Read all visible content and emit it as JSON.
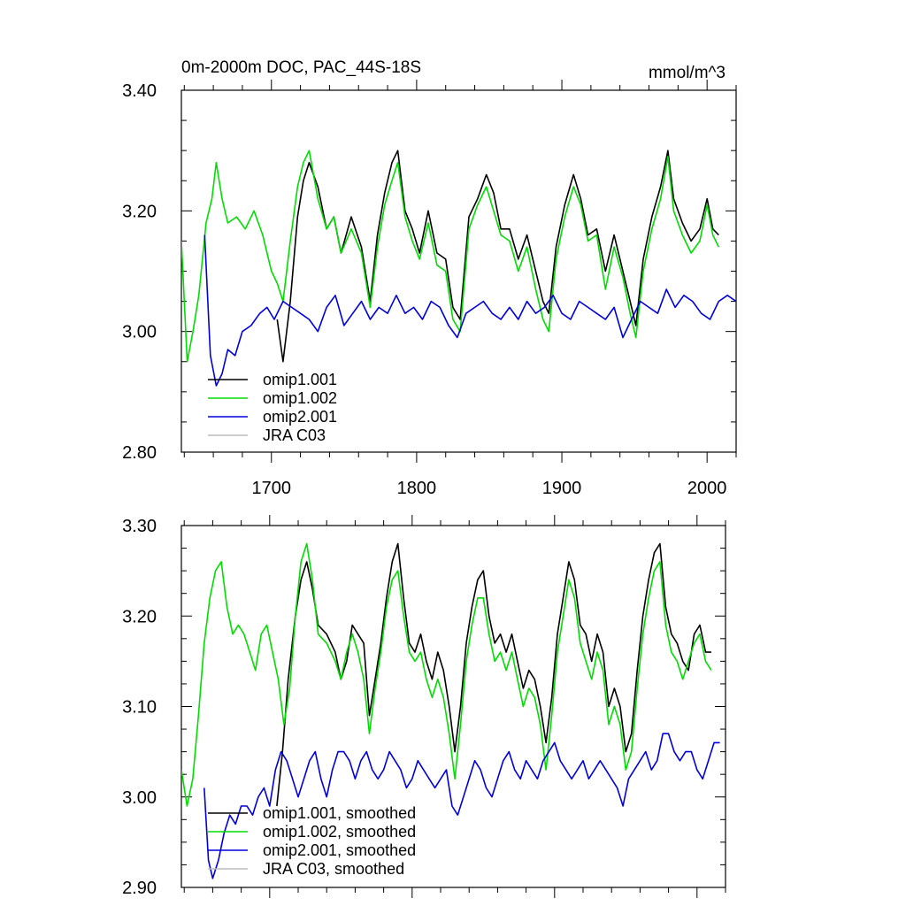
{
  "chart_data": [
    {
      "type": "line",
      "title": "0m-2000m DOC, PAC_44S-18S",
      "units": "mmol/m^3",
      "xlabel": "",
      "ylabel": "",
      "xlim": [
        1638,
        2020
      ],
      "ylim": [
        2.8,
        3.4
      ],
      "yticks": [
        2.8,
        3.0,
        3.2,
        3.4
      ],
      "ytick_labels": [
        "2.80",
        "3.00",
        "3.20",
        "3.40"
      ],
      "xticks": [
        1700,
        1800,
        1900,
        2000
      ],
      "xtick_labels": [
        "1700",
        "1800",
        "1900",
        "2000"
      ],
      "legend_position": "bottom-left",
      "series": [
        {
          "name": "omip1.001",
          "color": "#000000",
          "x": [
            1704,
            1708,
            1713,
            1718,
            1722,
            1726,
            1732,
            1738,
            1743,
            1748,
            1755,
            1762,
            1768,
            1773,
            1778,
            1783,
            1787,
            1792,
            1797,
            1802,
            1808,
            1814,
            1820,
            1825,
            1830,
            1836,
            1842,
            1848,
            1853,
            1858,
            1864,
            1870,
            1876,
            1882,
            1887,
            1891,
            1896,
            1902,
            1908,
            1913,
            1918,
            1924,
            1930,
            1936,
            1942,
            1947,
            1951,
            1956,
            1962,
            1968,
            1973,
            1977,
            1983,
            1989,
            1995,
            2000,
            2004,
            2008
          ],
          "y": [
            3.02,
            2.95,
            3.05,
            3.19,
            3.25,
            3.28,
            3.24,
            3.17,
            3.19,
            3.13,
            3.19,
            3.14,
            3.05,
            3.16,
            3.23,
            3.28,
            3.3,
            3.2,
            3.17,
            3.13,
            3.2,
            3.13,
            3.12,
            3.04,
            3.02,
            3.19,
            3.22,
            3.26,
            3.23,
            3.17,
            3.17,
            3.12,
            3.16,
            3.1,
            3.05,
            3.03,
            3.14,
            3.21,
            3.26,
            3.22,
            3.16,
            3.17,
            3.1,
            3.16,
            3.1,
            3.05,
            3.01,
            3.12,
            3.19,
            3.24,
            3.3,
            3.22,
            3.18,
            3.15,
            3.17,
            3.22,
            3.17,
            3.16
          ]
        },
        {
          "name": "omip1.002",
          "color": "#00dd00",
          "x": [
            1638,
            1642,
            1646,
            1650,
            1655,
            1659,
            1662,
            1666,
            1670,
            1676,
            1682,
            1688,
            1694,
            1700,
            1704,
            1708,
            1713,
            1718,
            1722,
            1726,
            1732,
            1738,
            1743,
            1748,
            1755,
            1762,
            1768,
            1773,
            1778,
            1783,
            1787,
            1792,
            1797,
            1802,
            1808,
            1814,
            1820,
            1825,
            1830,
            1836,
            1842,
            1848,
            1853,
            1858,
            1864,
            1870,
            1876,
            1882,
            1887,
            1891,
            1896,
            1902,
            1908,
            1913,
            1918,
            1924,
            1930,
            1936,
            1942,
            1947,
            1951,
            1956,
            1962,
            1968,
            1973,
            1977,
            1983,
            1989,
            1995,
            2000,
            2004,
            2008
          ],
          "y": [
            3.15,
            2.95,
            3.0,
            3.06,
            3.18,
            3.22,
            3.28,
            3.22,
            3.18,
            3.19,
            3.17,
            3.2,
            3.16,
            3.1,
            3.08,
            3.05,
            3.15,
            3.24,
            3.28,
            3.3,
            3.22,
            3.17,
            3.19,
            3.13,
            3.17,
            3.13,
            3.04,
            3.14,
            3.21,
            3.25,
            3.28,
            3.19,
            3.15,
            3.12,
            3.18,
            3.11,
            3.1,
            3.02,
            3.0,
            3.17,
            3.21,
            3.24,
            3.2,
            3.16,
            3.15,
            3.1,
            3.14,
            3.07,
            3.02,
            3.0,
            3.12,
            3.19,
            3.24,
            3.21,
            3.15,
            3.16,
            3.07,
            3.14,
            3.09,
            3.03,
            2.99,
            3.1,
            3.17,
            3.22,
            3.29,
            3.2,
            3.16,
            3.13,
            3.15,
            3.21,
            3.16,
            3.14
          ]
        },
        {
          "name": "omip2.001",
          "color": "#0000dd",
          "x": [
            1654,
            1658,
            1662,
            1666,
            1670,
            1675,
            1680,
            1686,
            1692,
            1697,
            1702,
            1708,
            1714,
            1720,
            1726,
            1732,
            1738,
            1744,
            1750,
            1756,
            1762,
            1768,
            1774,
            1780,
            1786,
            1792,
            1798,
            1804,
            1810,
            1816,
            1822,
            1828,
            1834,
            1840,
            1846,
            1852,
            1858,
            1864,
            1870,
            1876,
            1882,
            1888,
            1894,
            1900,
            1906,
            1912,
            1918,
            1924,
            1930,
            1936,
            1942,
            1948,
            1954,
            1960,
            1966,
            1972,
            1978,
            1984,
            1990,
            1996,
            2002,
            2008,
            2014,
            2020
          ],
          "y": [
            3.16,
            2.96,
            2.91,
            2.93,
            2.97,
            2.96,
            3.0,
            3.01,
            3.03,
            3.04,
            3.02,
            3.05,
            3.04,
            3.03,
            3.02,
            3.0,
            3.04,
            3.06,
            3.01,
            3.03,
            3.05,
            3.02,
            3.04,
            3.03,
            3.06,
            3.03,
            3.04,
            3.02,
            3.05,
            3.04,
            3.01,
            2.99,
            3.03,
            3.04,
            3.05,
            3.03,
            3.02,
            3.04,
            3.02,
            3.05,
            3.03,
            3.04,
            3.06,
            3.03,
            3.02,
            3.05,
            3.04,
            3.03,
            3.02,
            3.04,
            2.99,
            3.02,
            3.05,
            3.04,
            3.03,
            3.07,
            3.04,
            3.06,
            3.05,
            3.03,
            3.02,
            3.05,
            3.06,
            3.05
          ]
        },
        {
          "name": "JRA C03",
          "color": "#bbbbbb",
          "x": [],
          "y": []
        }
      ]
    },
    {
      "type": "line",
      "title": "",
      "xlabel": "",
      "ylabel": "",
      "xlim": [
        1638,
        2020
      ],
      "ylim": [
        2.9,
        3.3
      ],
      "yticks": [
        2.9,
        3.0,
        3.1,
        3.2,
        3.3
      ],
      "ytick_labels": [
        "2.90",
        "3.00",
        "3.10",
        "3.20",
        "3.30"
      ],
      "xticks": [
        1700,
        1800,
        1900,
        2000
      ],
      "xtick_labels": [],
      "legend_position": "bottom-left",
      "series": [
        {
          "name": "omip1.001, smoothed",
          "color": "#000000",
          "x": [
            1705,
            1709,
            1713,
            1718,
            1722,
            1726,
            1730,
            1734,
            1740,
            1746,
            1750,
            1754,
            1758,
            1762,
            1766,
            1770,
            1774,
            1778,
            1782,
            1786,
            1790,
            1794,
            1798,
            1802,
            1806,
            1810,
            1814,
            1818,
            1822,
            1826,
            1830,
            1834,
            1838,
            1842,
            1846,
            1850,
            1854,
            1858,
            1862,
            1866,
            1870,
            1874,
            1878,
            1882,
            1886,
            1890,
            1894,
            1898,
            1902,
            1906,
            1910,
            1914,
            1918,
            1922,
            1926,
            1930,
            1934,
            1938,
            1942,
            1946,
            1950,
            1954,
            1958,
            1962,
            1966,
            1970,
            1974,
            1978,
            1982,
            1986,
            1990,
            1994,
            1998,
            2002,
            2006,
            2010
          ],
          "y": [
            2.99,
            3.05,
            3.13,
            3.2,
            3.24,
            3.26,
            3.23,
            3.19,
            3.18,
            3.16,
            3.13,
            3.15,
            3.19,
            3.18,
            3.17,
            3.09,
            3.13,
            3.17,
            3.22,
            3.26,
            3.28,
            3.22,
            3.17,
            3.16,
            3.18,
            3.15,
            3.13,
            3.16,
            3.14,
            3.1,
            3.05,
            3.1,
            3.17,
            3.21,
            3.24,
            3.25,
            3.2,
            3.17,
            3.18,
            3.16,
            3.18,
            3.15,
            3.12,
            3.14,
            3.13,
            3.1,
            3.06,
            3.11,
            3.18,
            3.22,
            3.26,
            3.24,
            3.19,
            3.18,
            3.15,
            3.18,
            3.16,
            3.1,
            3.12,
            3.1,
            3.05,
            3.07,
            3.14,
            3.2,
            3.24,
            3.27,
            3.28,
            3.21,
            3.18,
            3.17,
            3.15,
            3.14,
            3.18,
            3.19,
            3.16,
            3.16
          ]
        },
        {
          "name": "omip1.002, smoothed",
          "color": "#00dd00",
          "x": [
            1638,
            1642,
            1646,
            1650,
            1654,
            1658,
            1662,
            1666,
            1670,
            1674,
            1678,
            1682,
            1686,
            1690,
            1694,
            1698,
            1702,
            1706,
            1710,
            1714,
            1718,
            1722,
            1726,
            1730,
            1734,
            1740,
            1746,
            1750,
            1754,
            1758,
            1762,
            1766,
            1770,
            1774,
            1778,
            1782,
            1786,
            1790,
            1794,
            1798,
            1802,
            1806,
            1810,
            1814,
            1818,
            1822,
            1826,
            1830,
            1834,
            1838,
            1842,
            1846,
            1850,
            1854,
            1858,
            1862,
            1866,
            1870,
            1874,
            1878,
            1882,
            1886,
            1890,
            1894,
            1898,
            1902,
            1906,
            1910,
            1914,
            1918,
            1922,
            1926,
            1930,
            1934,
            1938,
            1942,
            1946,
            1950,
            1954,
            1958,
            1962,
            1966,
            1970,
            1974,
            1978,
            1982,
            1986,
            1990,
            1994,
            1998,
            2002,
            2006,
            2010
          ],
          "y": [
            3.03,
            2.99,
            3.02,
            3.09,
            3.17,
            3.22,
            3.25,
            3.26,
            3.21,
            3.18,
            3.19,
            3.18,
            3.16,
            3.14,
            3.18,
            3.19,
            3.16,
            3.13,
            3.08,
            3.12,
            3.2,
            3.26,
            3.28,
            3.24,
            3.18,
            3.17,
            3.15,
            3.13,
            3.16,
            3.18,
            3.16,
            3.13,
            3.07,
            3.12,
            3.16,
            3.21,
            3.24,
            3.25,
            3.2,
            3.16,
            3.15,
            3.16,
            3.13,
            3.11,
            3.13,
            3.11,
            3.07,
            3.02,
            3.08,
            3.15,
            3.19,
            3.22,
            3.22,
            3.18,
            3.15,
            3.16,
            3.14,
            3.16,
            3.13,
            3.1,
            3.12,
            3.11,
            3.08,
            3.03,
            3.09,
            3.16,
            3.2,
            3.24,
            3.22,
            3.17,
            3.15,
            3.13,
            3.16,
            3.14,
            3.08,
            3.1,
            3.08,
            3.03,
            3.05,
            3.12,
            3.18,
            3.22,
            3.25,
            3.26,
            3.19,
            3.16,
            3.15,
            3.13,
            3.15,
            3.17,
            3.18,
            3.15,
            3.14
          ]
        },
        {
          "name": "omip2.001, smoothed",
          "color": "#0000dd",
          "x": [
            1654,
            1657,
            1660,
            1664,
            1668,
            1672,
            1676,
            1680,
            1684,
            1688,
            1692,
            1696,
            1700,
            1704,
            1708,
            1712,
            1716,
            1720,
            1724,
            1728,
            1732,
            1736,
            1740,
            1744,
            1748,
            1752,
            1756,
            1760,
            1764,
            1768,
            1772,
            1776,
            1780,
            1784,
            1788,
            1792,
            1796,
            1800,
            1804,
            1808,
            1812,
            1816,
            1820,
            1824,
            1828,
            1832,
            1836,
            1840,
            1844,
            1848,
            1852,
            1856,
            1860,
            1864,
            1868,
            1872,
            1876,
            1880,
            1884,
            1888,
            1892,
            1896,
            1900,
            1904,
            1908,
            1912,
            1916,
            1920,
            1924,
            1928,
            1932,
            1936,
            1940,
            1944,
            1948,
            1952,
            1956,
            1960,
            1964,
            1968,
            1972,
            1976,
            1980,
            1984,
            1988,
            1992,
            1996,
            2000,
            2004,
            2008,
            2012,
            2016
          ],
          "y": [
            3.01,
            2.93,
            2.91,
            2.93,
            2.96,
            2.98,
            2.97,
            2.99,
            2.99,
            2.98,
            3.0,
            3.01,
            2.99,
            3.03,
            3.05,
            3.04,
            3.02,
            3.0,
            3.02,
            3.04,
            3.05,
            3.02,
            3.0,
            3.03,
            3.05,
            3.05,
            3.04,
            3.02,
            3.04,
            3.05,
            3.03,
            3.02,
            3.03,
            3.05,
            3.04,
            3.03,
            3.01,
            3.02,
            3.04,
            3.03,
            3.02,
            3.01,
            3.02,
            3.03,
            2.99,
            2.98,
            3.0,
            3.02,
            3.04,
            3.03,
            3.01,
            3.0,
            3.02,
            3.04,
            3.05,
            3.03,
            3.02,
            3.04,
            3.03,
            3.02,
            3.04,
            3.05,
            3.06,
            3.04,
            3.03,
            3.02,
            3.03,
            3.04,
            3.02,
            3.03,
            3.04,
            3.03,
            3.02,
            3.01,
            2.99,
            3.02,
            3.03,
            3.04,
            3.05,
            3.03,
            3.04,
            3.07,
            3.07,
            3.05,
            3.04,
            3.05,
            3.05,
            3.03,
            3.02,
            3.04,
            3.06,
            3.06
          ]
        },
        {
          "name": "JRA C03, smoothed",
          "color": "#bbbbbb",
          "x": [],
          "y": []
        }
      ]
    }
  ]
}
